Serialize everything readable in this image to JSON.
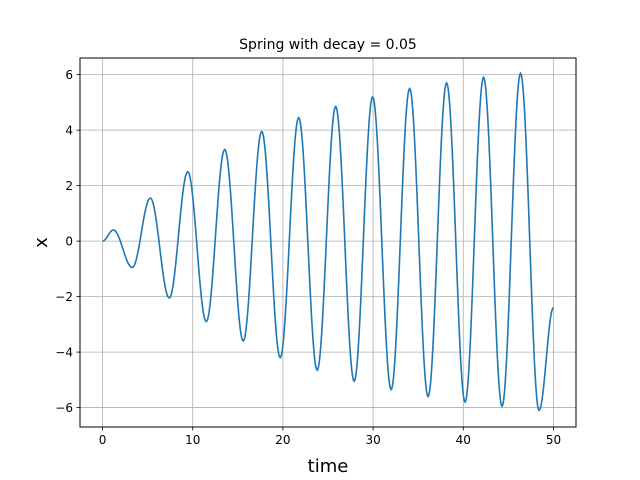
{
  "chart_data": {
    "type": "line",
    "title": "Spring with decay = 0.05",
    "xlabel": "time",
    "ylabel": "x",
    "xlim": [
      -2.5,
      52.5
    ],
    "ylim": [
      -6.7,
      6.6
    ],
    "xticks": [
      0,
      10,
      20,
      30,
      40,
      50
    ],
    "xtick_labels": [
      "0",
      "10",
      "20",
      "30",
      "40",
      "50"
    ],
    "yticks": [
      -6,
      -4,
      -2,
      0,
      2,
      4,
      6
    ],
    "ytick_labels": [
      "−6",
      "−4",
      "−2",
      "0",
      "2",
      "4",
      "6"
    ],
    "grid": true,
    "line_color": "#1f77b4",
    "series": [
      {
        "x": [
          0,
          1.2,
          3.3,
          5.3,
          7.4,
          9.45,
          11.5,
          13.55,
          15.6,
          17.65,
          19.7,
          21.75,
          23.8,
          25.85,
          27.9,
          29.95,
          32.0,
          34.05,
          36.1,
          38.15,
          40.2,
          42.25,
          44.3,
          46.35,
          48.4,
          50.0
        ],
        "y": [
          0,
          0.4,
          -0.95,
          1.55,
          -2.05,
          2.5,
          -2.9,
          3.3,
          -3.6,
          3.95,
          -4.2,
          4.45,
          -4.65,
          4.85,
          -5.05,
          5.2,
          -5.35,
          5.5,
          -5.6,
          5.7,
          -5.8,
          5.9,
          -5.95,
          6.05,
          -6.1,
          -2.4
        ]
      }
    ]
  }
}
